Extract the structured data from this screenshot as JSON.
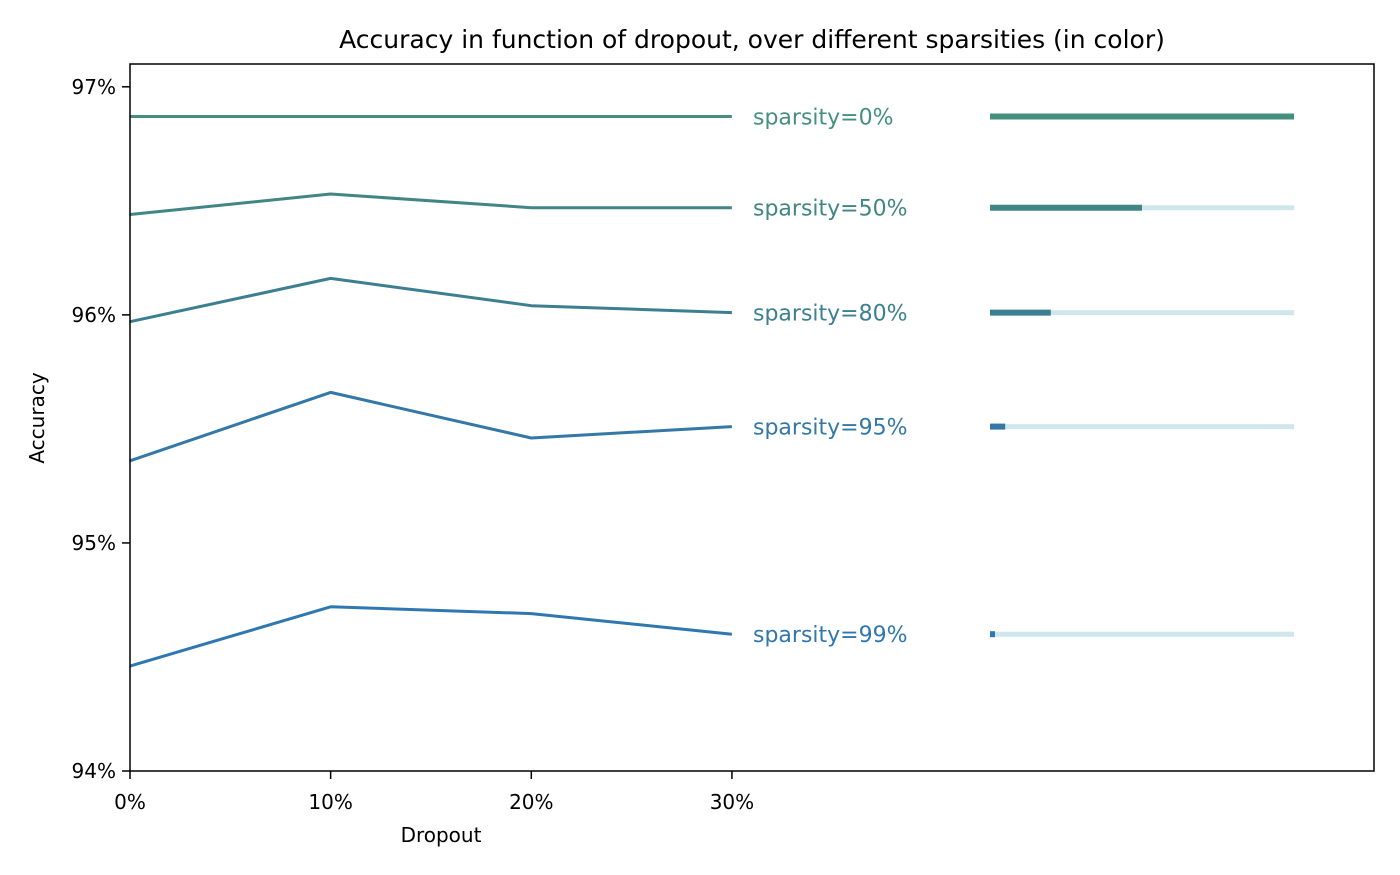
{
  "chart_data": {
    "type": "line",
    "title": "Accuracy in function of dropout, over different sparsities (in color)",
    "xlabel": "Dropout",
    "ylabel": "Accuracy",
    "x": [
      0,
      10,
      20,
      30
    ],
    "x_tick_labels": [
      "0%",
      "10%",
      "20%",
      "30%"
    ],
    "xlim": [
      0,
      62
    ],
    "ylim": [
      94,
      97.1
    ],
    "y_ticks": [
      94,
      95,
      96,
      97
    ],
    "y_tick_labels": [
      "94%",
      "95%",
      "96%",
      "97%"
    ],
    "grid": false,
    "legend": "inline-right",
    "series": [
      {
        "name": "sparsity=0%",
        "values": [
          96.87,
          96.87,
          96.87,
          96.87
        ],
        "density": 1.0,
        "color": "#458f7f"
      },
      {
        "name": "sparsity=50%",
        "values": [
          96.44,
          96.53,
          96.47,
          96.47
        ],
        "density": 0.5,
        "color": "#418684"
      },
      {
        "name": "sparsity=80%",
        "values": [
          95.97,
          96.16,
          96.04,
          96.01
        ],
        "density": 0.2,
        "color": "#3c7f91"
      },
      {
        "name": "sparsity=95%",
        "values": [
          95.36,
          95.66,
          95.46,
          95.51
        ],
        "density": 0.05,
        "color": "#3378a6"
      },
      {
        "name": "sparsity=99%",
        "values": [
          94.46,
          94.72,
          94.69,
          94.6
        ],
        "density": 0.01,
        "color": "#2f77b0"
      }
    ],
    "density_bar_track_color": "#cfe6ec",
    "axis_color": "#000000"
  }
}
